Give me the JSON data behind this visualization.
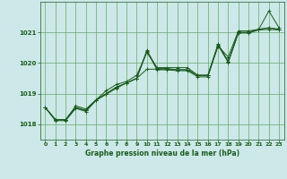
{
  "title": "Graphe pression niveau de la mer (hPa)",
  "bg_color": "#cce8e8",
  "grid_color": "#66aa66",
  "line_color": "#1a5c1a",
  "xlim": [
    -0.5,
    23.5
  ],
  "ylim": [
    1017.5,
    1022.0
  ],
  "yticks": [
    1018,
    1019,
    1020,
    1021
  ],
  "xticks": [
    0,
    1,
    2,
    3,
    4,
    5,
    6,
    7,
    8,
    9,
    10,
    11,
    12,
    13,
    14,
    15,
    16,
    17,
    18,
    19,
    20,
    21,
    22,
    23
  ],
  "series": [
    [
      1018.55,
      1018.15,
      1018.15,
      1018.6,
      1018.5,
      1018.8,
      1019.1,
      1019.3,
      1019.4,
      1019.6,
      1020.35,
      1019.85,
      1019.85,
      1019.85,
      1019.85,
      1019.6,
      1019.6,
      1020.55,
      1020.2,
      1021.05,
      1021.05,
      1021.1,
      1021.7,
      1021.15
    ],
    [
      1018.55,
      1018.15,
      1018.15,
      1018.55,
      1018.45,
      1018.8,
      1019.0,
      1019.2,
      1019.35,
      1019.5,
      1019.8,
      1019.8,
      1019.8,
      1019.78,
      1019.78,
      1019.6,
      1019.6,
      1020.6,
      1020.05,
      1021.0,
      1021.0,
      1021.1,
      1021.15,
      1021.1
    ],
    [
      1018.55,
      1018.15,
      1018.15,
      1018.55,
      1018.45,
      1018.8,
      1019.0,
      1019.22,
      1019.35,
      1019.5,
      1020.42,
      1019.82,
      1019.82,
      1019.78,
      1019.78,
      1019.6,
      1019.6,
      1020.62,
      1020.05,
      1021.0,
      1021.0,
      1021.1,
      1021.15,
      1021.1
    ],
    [
      1018.55,
      1018.12,
      1018.12,
      1018.52,
      1018.42,
      1018.78,
      1018.98,
      1019.18,
      1019.35,
      1019.5,
      1020.38,
      1019.78,
      1019.78,
      1019.75,
      1019.75,
      1019.55,
      1019.55,
      1020.58,
      1020.02,
      1020.98,
      1020.98,
      1021.08,
      1021.1,
      1021.08
    ]
  ]
}
